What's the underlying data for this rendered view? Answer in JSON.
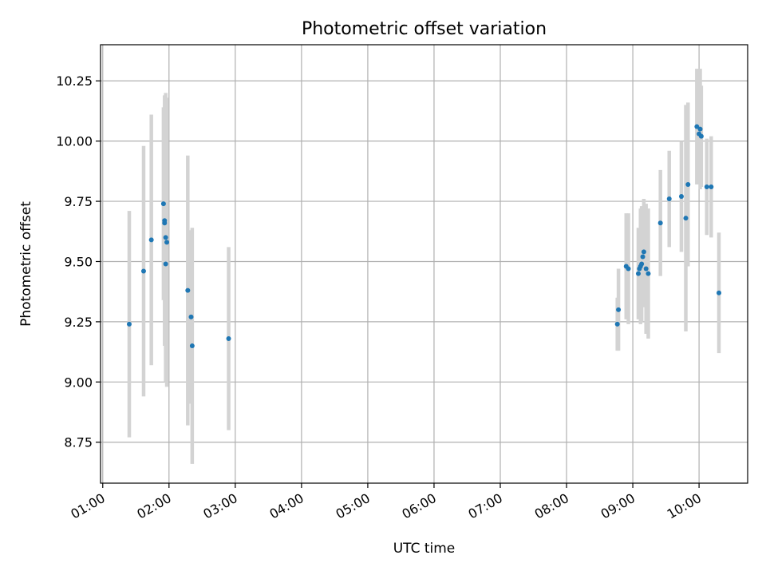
{
  "chart_data": {
    "type": "scatter",
    "title": "Photometric offset variation",
    "xlabel": "UTC time",
    "ylabel": "Photometric offset",
    "xlim": [
      "00:58",
      "10:44"
    ],
    "ylim": [
      8.58,
      10.4
    ],
    "x_ticks": [
      "01:00",
      "02:00",
      "03:00",
      "04:00",
      "05:00",
      "06:00",
      "07:00",
      "08:00",
      "09:00",
      "10:00"
    ],
    "y_ticks": [
      "8.75",
      "9.00",
      "9.25",
      "9.50",
      "9.75",
      "10.00",
      "10.25"
    ],
    "grid": true,
    "marker_color": "#1f77b4",
    "errorbar_color": "#d3d3d3",
    "points": [
      {
        "t": "01:24",
        "y": 9.24,
        "err": 0.47
      },
      {
        "t": "01:37",
        "y": 9.46,
        "err": 0.52
      },
      {
        "t": "01:44",
        "y": 9.59,
        "err": 0.52
      },
      {
        "t": "01:55",
        "y": 9.74,
        "err": 0.4
      },
      {
        "t": "01:56",
        "y": 9.67,
        "err": 0.52
      },
      {
        "t": "01:56",
        "y": 9.66,
        "err": 0.32
      },
      {
        "t": "01:57",
        "y": 9.6,
        "err": 0.6
      },
      {
        "t": "01:57",
        "y": 9.49,
        "err": 0.4
      },
      {
        "t": "01:58",
        "y": 9.58,
        "err": 0.6
      },
      {
        "t": "02:17",
        "y": 9.38,
        "err": 0.56
      },
      {
        "t": "02:20",
        "y": 9.27,
        "err": 0.36
      },
      {
        "t": "02:21",
        "y": 9.15,
        "err": 0.49
      },
      {
        "t": "02:54",
        "y": 9.18,
        "err": 0.38
      },
      {
        "t": "08:46",
        "y": 9.24,
        "err": 0.11
      },
      {
        "t": "08:47",
        "y": 9.3,
        "err": 0.17
      },
      {
        "t": "08:54",
        "y": 9.48,
        "err": 0.22
      },
      {
        "t": "08:56",
        "y": 9.47,
        "err": 0.23
      },
      {
        "t": "09:05",
        "y": 9.45,
        "err": 0.19
      },
      {
        "t": "09:06",
        "y": 9.47,
        "err": 0.16
      },
      {
        "t": "09:07",
        "y": 9.48,
        "err": 0.24
      },
      {
        "t": "09:08",
        "y": 9.49,
        "err": 0.24
      },
      {
        "t": "09:09",
        "y": 9.52,
        "err": 0.21
      },
      {
        "t": "09:10",
        "y": 9.54,
        "err": 0.22
      },
      {
        "t": "09:12",
        "y": 9.47,
        "err": 0.27
      },
      {
        "t": "09:14",
        "y": 9.45,
        "err": 0.27
      },
      {
        "t": "09:25",
        "y": 9.66,
        "err": 0.22
      },
      {
        "t": "09:33",
        "y": 9.76,
        "err": 0.2
      },
      {
        "t": "09:44",
        "y": 9.77,
        "err": 0.23
      },
      {
        "t": "09:48",
        "y": 9.68,
        "err": 0.47
      },
      {
        "t": "09:50",
        "y": 9.82,
        "err": 0.34
      },
      {
        "t": "09:58",
        "y": 10.06,
        "err": 0.24
      },
      {
        "t": "10:00",
        "y": 10.03,
        "err": 0.21
      },
      {
        "t": "10:01",
        "y": 10.05,
        "err": 0.25
      },
      {
        "t": "10:02",
        "y": 10.02,
        "err": 0.21
      },
      {
        "t": "10:07",
        "y": 9.81,
        "err": 0.2
      },
      {
        "t": "10:11",
        "y": 9.81,
        "err": 0.21
      },
      {
        "t": "10:18",
        "y": 9.37,
        "err": 0.25
      }
    ]
  }
}
